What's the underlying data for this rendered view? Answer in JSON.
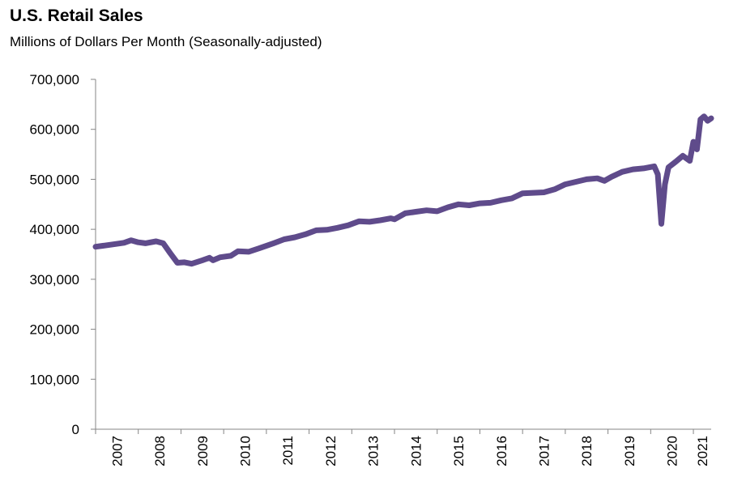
{
  "chart_data": {
    "type": "line",
    "title": "U.S. Retail Sales",
    "subtitle": "Millions of Dollars Per Month (Seasonally-adjusted)",
    "xlabel": "",
    "ylabel": "",
    "ylim": [
      0,
      700000
    ],
    "xlim": [
      "2007-01",
      "2021-06"
    ],
    "y_ticks": [
      0,
      100000,
      200000,
      300000,
      400000,
      500000,
      600000,
      700000
    ],
    "y_tick_labels": [
      "0",
      "100,000",
      "200,000",
      "300,000",
      "400,000",
      "500,000",
      "600,000",
      "700,000"
    ],
    "x_tick_labels": [
      "2007",
      "2008",
      "2009",
      "2010",
      "2011",
      "2012",
      "2013",
      "2014",
      "2015",
      "2016",
      "2017",
      "2018",
      "2019",
      "2020",
      "2021"
    ],
    "grid": false,
    "legend": "none",
    "line_color": "#5f4b8b",
    "series": [
      {
        "points": [
          [
            "2007-01",
            365000
          ],
          [
            "2007-03",
            367000
          ],
          [
            "2007-06",
            370000
          ],
          [
            "2007-09",
            373000
          ],
          [
            "2007-11",
            378000
          ],
          [
            "2008-01",
            374000
          ],
          [
            "2008-03",
            372000
          ],
          [
            "2008-06",
            376000
          ],
          [
            "2008-08",
            372000
          ],
          [
            "2008-10",
            352000
          ],
          [
            "2008-12",
            333000
          ],
          [
            "2009-02",
            334000
          ],
          [
            "2009-04",
            331000
          ],
          [
            "2009-07",
            338000
          ],
          [
            "2009-09",
            343000
          ],
          [
            "2009-10",
            338000
          ],
          [
            "2009-12",
            344000
          ],
          [
            "2010-03",
            347000
          ],
          [
            "2010-05",
            356000
          ],
          [
            "2010-08",
            355000
          ],
          [
            "2010-11",
            362000
          ],
          [
            "2011-03",
            372000
          ],
          [
            "2011-06",
            380000
          ],
          [
            "2011-09",
            384000
          ],
          [
            "2011-12",
            390000
          ],
          [
            "2012-03",
            398000
          ],
          [
            "2012-06",
            399000
          ],
          [
            "2012-09",
            403000
          ],
          [
            "2012-12",
            408000
          ],
          [
            "2013-03",
            416000
          ],
          [
            "2013-06",
            415000
          ],
          [
            "2013-09",
            418000
          ],
          [
            "2013-12",
            422000
          ],
          [
            "2014-01",
            420000
          ],
          [
            "2014-04",
            432000
          ],
          [
            "2014-07",
            435000
          ],
          [
            "2014-10",
            438000
          ],
          [
            "2015-01",
            436000
          ],
          [
            "2015-04",
            444000
          ],
          [
            "2015-07",
            450000
          ],
          [
            "2015-10",
            448000
          ],
          [
            "2016-01",
            452000
          ],
          [
            "2016-04",
            453000
          ],
          [
            "2016-07",
            458000
          ],
          [
            "2016-10",
            462000
          ],
          [
            "2017-01",
            472000
          ],
          [
            "2017-04",
            473000
          ],
          [
            "2017-07",
            474000
          ],
          [
            "2017-10",
            480000
          ],
          [
            "2018-01",
            490000
          ],
          [
            "2018-04",
            495000
          ],
          [
            "2018-07",
            500000
          ],
          [
            "2018-10",
            502000
          ],
          [
            "2018-12",
            497000
          ],
          [
            "2019-02",
            505000
          ],
          [
            "2019-05",
            515000
          ],
          [
            "2019-08",
            520000
          ],
          [
            "2019-11",
            522000
          ],
          [
            "2020-02",
            526000
          ],
          [
            "2020-03",
            510000
          ],
          [
            "2020-04",
            411000
          ],
          [
            "2020-05",
            490000
          ],
          [
            "2020-06",
            524000
          ],
          [
            "2020-08",
            535000
          ],
          [
            "2020-10",
            547000
          ],
          [
            "2020-12",
            537000
          ],
          [
            "2021-01",
            575000
          ],
          [
            "2021-02",
            560000
          ],
          [
            "2021-03",
            620000
          ],
          [
            "2021-04",
            626000
          ],
          [
            "2021-05",
            617000
          ],
          [
            "2021-06",
            622000
          ]
        ]
      }
    ]
  }
}
